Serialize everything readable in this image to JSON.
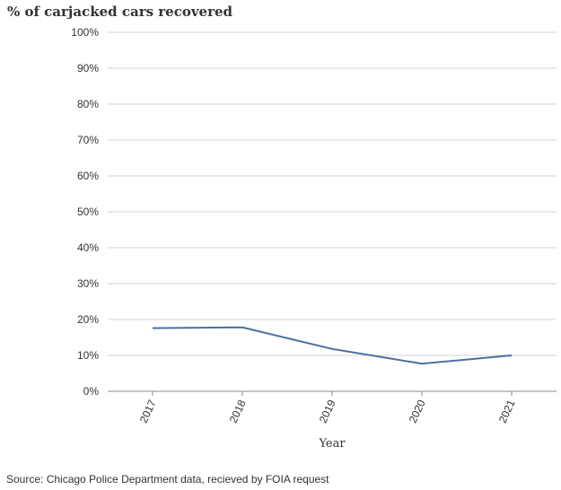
{
  "title": "% of carjacked cars recovered",
  "source": "Source: Chicago Police Department data, recieved by FOIA request",
  "colors": {
    "line": "#4a71a0",
    "grid": "#d3d3d3",
    "axis": "#888888",
    "text": "#333333"
  },
  "chart_data": {
    "type": "line",
    "title": "% of carjacked cars recovered",
    "xlabel": "Year",
    "ylabel": "",
    "x": [
      "2017",
      "2018",
      "2019",
      "2020",
      "2021"
    ],
    "series": [
      {
        "values": [
          17.6,
          17.8,
          11.8,
          7.7,
          10.0
        ]
      }
    ],
    "ylim": [
      0,
      100
    ],
    "yticks": [
      0,
      10,
      20,
      30,
      40,
      50,
      60,
      70,
      80,
      90,
      100
    ],
    "ytick_labels": [
      "0%",
      "10%",
      "20%",
      "30%",
      "40%",
      "50%",
      "60%",
      "70%",
      "80%",
      "90%",
      "100%"
    ],
    "grid": true,
    "legend": "none"
  }
}
